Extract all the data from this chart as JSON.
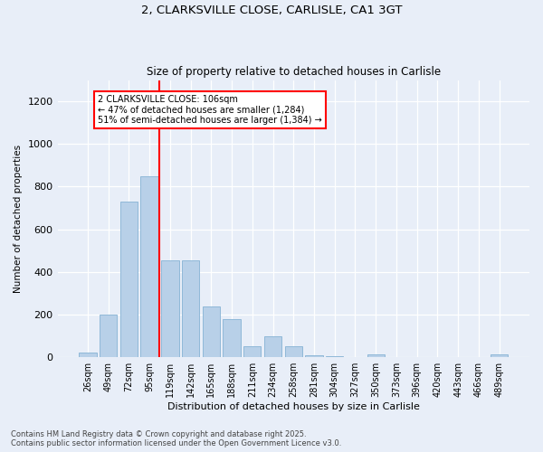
{
  "title1": "2, CLARKSVILLE CLOSE, CARLISLE, CA1 3GT",
  "title2": "Size of property relative to detached houses in Carlisle",
  "xlabel": "Distribution of detached houses by size in Carlisle",
  "ylabel": "Number of detached properties",
  "categories": [
    "26sqm",
    "49sqm",
    "72sqm",
    "95sqm",
    "119sqm",
    "142sqm",
    "165sqm",
    "188sqm",
    "211sqm",
    "234sqm",
    "258sqm",
    "281sqm",
    "304sqm",
    "327sqm",
    "350sqm",
    "373sqm",
    "396sqm",
    "420sqm",
    "443sqm",
    "466sqm",
    "489sqm"
  ],
  "values": [
    20,
    200,
    730,
    850,
    455,
    455,
    240,
    180,
    50,
    100,
    50,
    10,
    5,
    2,
    15,
    2,
    2,
    2,
    2,
    2,
    15
  ],
  "bar_color": "#b8d0e8",
  "bar_edgecolor": "#90b8d8",
  "vline_x_index": 3.5,
  "vline_color": "red",
  "annotation_text": "2 CLARKSVILLE CLOSE: 106sqm\n← 47% of detached houses are smaller (1,284)\n51% of semi-detached houses are larger (1,384) →",
  "annotation_box_color": "white",
  "annotation_box_edgecolor": "red",
  "ylim": [
    0,
    1300
  ],
  "yticks": [
    0,
    200,
    400,
    600,
    800,
    1000,
    1200
  ],
  "footnote1": "Contains HM Land Registry data © Crown copyright and database right 2025.",
  "footnote2": "Contains public sector information licensed under the Open Government Licence v3.0.",
  "bg_color": "#e8eef8",
  "plot_bg_color": "#e8eef8"
}
